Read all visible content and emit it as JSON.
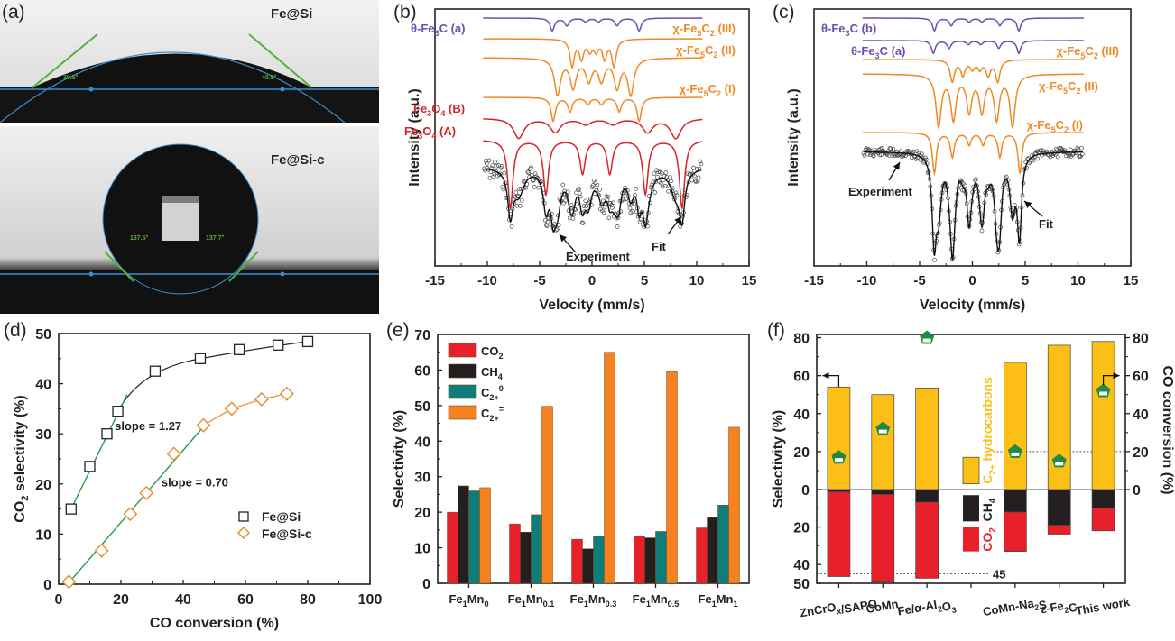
{
  "panel_labels": {
    "a": "(a)",
    "b": "(b)",
    "c": "(c)",
    "d": "(d)",
    "e": "(e)",
    "f": "(f)"
  },
  "panel_a": {
    "top_sample": "Fe@Si",
    "top_angles": [
      "39.5°",
      "40.9°"
    ],
    "bottom_sample": "Fe@Si-c",
    "bottom_angles": [
      "137.5°",
      "137.7°"
    ]
  },
  "chart_data": [
    {
      "id": "b",
      "type": "line",
      "title": "",
      "xlabel": "Velocity (mm/s)",
      "ylabel": "Intensity (a.u.)",
      "xlim": [
        -15,
        15
      ],
      "xticks": [
        "-15",
        "-10",
        "-5",
        "0",
        "5",
        "10",
        "15"
      ],
      "xtick_values": [
        -15,
        -10,
        -5,
        0,
        5,
        10,
        15
      ],
      "components": [
        {
          "name": "θ-Fe3C (a)",
          "label_html": "θ-Fe<sub>3</sub>C (a)",
          "color": "#6a4fb0",
          "dips": [
            -3.8,
            -2.4,
            -0.6,
            0.6,
            2.4,
            4.5
          ],
          "depths": [
            1,
            0.6,
            0.3,
            0.3,
            0.6,
            1
          ],
          "width": 0.25
        },
        {
          "name": "χ-Fe5C2 (III)",
          "color": "#f08a24",
          "dips": [
            -1.9,
            -1.0,
            -0.2,
            0.4,
            1.2,
            2.1
          ],
          "depths": [
            1,
            0.7,
            0.4,
            0.4,
            0.7,
            1
          ],
          "width": 0.25
        },
        {
          "name": "χ-Fe5C2 (II)",
          "color": "#f08a24",
          "dips": [
            -3.3,
            -1.8,
            -0.3,
            0.9,
            2.4,
            3.7
          ],
          "depths": [
            1,
            0.8,
            0.6,
            0.6,
            0.8,
            1
          ],
          "width": 0.35
        },
        {
          "name": "χ-Fe5C2 (I)",
          "color": "#f08a24",
          "dips": [
            -3.7,
            -2.1,
            -0.4,
            0.9,
            2.6,
            4.5
          ],
          "depths": [
            1,
            0.6,
            0.3,
            0.3,
            0.6,
            1
          ],
          "width": 0.25
        },
        {
          "name": "Fe3O4 (B)",
          "color": "#d8232a",
          "dips": [
            -7.0,
            -3.5,
            -0.6,
            2.0,
            5.3,
            8.0
          ],
          "depths": [
            1,
            0.7,
            0.3,
            0.3,
            0.7,
            1
          ],
          "width": 0.6
        },
        {
          "name": "Fe3O4 (A)",
          "color": "#d8232a",
          "dips": [
            -7.8,
            -4.4,
            -0.9,
            1.7,
            5.1,
            8.6
          ],
          "depths": [
            1,
            0.8,
            0.5,
            0.5,
            0.8,
            1
          ],
          "width": 0.3
        }
      ],
      "labels": {
        "theta_a": "θ-Fe",
        "chi": "χ-Fe",
        "fe3o4": "Fe",
        "experiment": "Experiment",
        "fit": "Fit"
      },
      "annotations": [
        "Experiment",
        "Fit"
      ]
    },
    {
      "id": "c",
      "type": "line",
      "title": "",
      "xlabel": "Velocity (mm/s)",
      "ylabel": "Intensity (a.u.)",
      "xlim": [
        -15,
        15
      ],
      "xticks": [
        "-15",
        "-10",
        "-5",
        "0",
        "5",
        "10",
        "15"
      ],
      "xtick_values": [
        -15,
        -10,
        -5,
        0,
        5,
        10,
        15
      ],
      "components": [
        {
          "name": "θ-Fe3C (b)",
          "color": "#6a4fb0",
          "dips": [
            -3.6,
            -2.0,
            -0.3,
            0.9,
            2.6,
            4.4
          ],
          "depths": [
            1,
            0.6,
            0.3,
            0.3,
            0.6,
            1
          ],
          "width": 0.22
        },
        {
          "name": "θ-Fe3C (a)",
          "color": "#6a4fb0",
          "dips": [
            -3.7,
            -2.2,
            -0.4,
            0.8,
            2.5,
            4.4
          ],
          "depths": [
            1,
            0.6,
            0.3,
            0.3,
            0.6,
            1
          ],
          "width": 0.22
        },
        {
          "name": "χ-Fe5C2 (III)",
          "color": "#f08a24",
          "dips": [
            -1.9,
            -0.9,
            0.0,
            0.7,
            1.5,
            2.4
          ],
          "depths": [
            1,
            0.7,
            0.4,
            0.4,
            0.7,
            1
          ],
          "width": 0.25
        },
        {
          "name": "χ-Fe5C2 (II)",
          "color": "#f08a24",
          "dips": [
            -3.2,
            -1.8,
            -0.3,
            0.9,
            2.3,
            3.8
          ],
          "depths": [
            1,
            0.85,
            0.7,
            0.7,
            0.85,
            1
          ],
          "width": 0.3
        },
        {
          "name": "χ-Fe5C2 (I)",
          "color": "#f08a24",
          "dips": [
            -3.6,
            -1.9,
            -0.3,
            1.0,
            2.6,
            4.5
          ],
          "depths": [
            1,
            0.6,
            0.3,
            0.3,
            0.6,
            1
          ],
          "width": 0.22
        }
      ],
      "annotations": [
        "Experiment",
        "Fit"
      ]
    },
    {
      "id": "d",
      "type": "scatter",
      "title": "",
      "xlabel": "CO conversion (%)",
      "ylabel": "CO2 selectivity (%)",
      "xlim": [
        0,
        100
      ],
      "ylim": [
        0,
        50
      ],
      "xticks": [
        "0",
        "20",
        "40",
        "60",
        "80",
        "100"
      ],
      "xtick_values": [
        0,
        20,
        40,
        60,
        80,
        100
      ],
      "yticks": [
        "0",
        "10",
        "20",
        "30",
        "40",
        "50"
      ],
      "ytick_values": [
        0,
        10,
        20,
        30,
        40,
        50
      ],
      "series": [
        {
          "name": "Fe@Si",
          "marker": "square",
          "color": "#222222",
          "x": [
            4,
            10,
            15.5,
            19,
            31,
            45.5,
            58,
            70.5,
            80
          ],
          "y": [
            15,
            23.5,
            30,
            34.5,
            42.5,
            45,
            46.8,
            47.7,
            48.4
          ]
        },
        {
          "name": "Fe@Si-c",
          "marker": "diamond",
          "color": "#e8892c",
          "x": [
            3.3,
            13.8,
            23,
            28.2,
            37,
            46.5,
            55.6,
            65.2,
            73.3
          ],
          "y": [
            0.5,
            6.7,
            14,
            18.2,
            26,
            31.7,
            35,
            36.9,
            38
          ]
        }
      ],
      "fits": [
        {
          "label": "slope = 1.27",
          "slope": 1.27,
          "x": [
            4,
            22
          ],
          "color": "#2a9a4a"
        },
        {
          "label": "slope = 0.70",
          "slope": 0.7,
          "x": [
            3.3,
            46.5
          ],
          "color": "#2a9a4a"
        }
      ],
      "legend_position": "bottom-right"
    },
    {
      "id": "e",
      "type": "bar",
      "title": "",
      "xlabel": "",
      "ylabel": "Selectivity (%)",
      "ylim": [
        0,
        70
      ],
      "yticks": [
        "0",
        "10",
        "20",
        "30",
        "40",
        "50",
        "60",
        "70"
      ],
      "ytick_values": [
        0,
        10,
        20,
        30,
        40,
        50,
        60,
        70
      ],
      "categories": [
        "Fe1Mn0",
        "Fe1Mn0.1",
        "Fe1Mn0.3",
        "Fe1Mn0.5",
        "Fe1Mn1"
      ],
      "category_parts": [
        [
          "Fe",
          "1",
          "Mn",
          "0"
        ],
        [
          "Fe",
          "1",
          "Mn",
          "0.1"
        ],
        [
          "Fe",
          "1",
          "Mn",
          "0.3"
        ],
        [
          "Fe",
          "1",
          "Mn",
          "0.5"
        ],
        [
          "Fe",
          "1",
          "Mn",
          "1"
        ]
      ],
      "series": [
        {
          "name": "CO2",
          "color": "#e8202a",
          "values": [
            20,
            16.7,
            12.4,
            13.2,
            15.6
          ]
        },
        {
          "name": "CH4",
          "color": "#231f20",
          "values": [
            27.4,
            14.4,
            9.7,
            12.8,
            18.5
          ]
        },
        {
          "name": "C2+0",
          "color": "#0f7e7a",
          "values": [
            26,
            19.3,
            13.2,
            14.6,
            22
          ]
        },
        {
          "name": "C2+=",
          "color": "#f5821f",
          "values": [
            26.9,
            49.8,
            65,
            59.5,
            43.9
          ]
        }
      ],
      "legend_parts": [
        [
          "CO",
          "2",
          ""
        ],
        [
          "CH",
          "4",
          ""
        ],
        [
          "C",
          "2+",
          "0"
        ],
        [
          "C",
          "2+",
          "="
        ]
      ],
      "legend_position": "top-left"
    },
    {
      "id": "f",
      "type": "bar",
      "title": "",
      "xlabel": "",
      "ylabel": "Selectivity (%)",
      "y2label": "CO conversion (%)",
      "ylim_top": [
        0,
        85
      ],
      "ylim_bottom": [
        0,
        50
      ],
      "yticks_top": [
        "0",
        "20",
        "40",
        "60",
        "80"
      ],
      "ytick_values_top": [
        0,
        20,
        40,
        60,
        80
      ],
      "yticks_bottom": [
        "20",
        "40",
        "50"
      ],
      "ytick_values_bottom": [
        20,
        40,
        50
      ],
      "y2ticks": [
        "0",
        "20",
        "40",
        "60",
        "80"
      ],
      "y2tick_values": [
        0,
        20,
        40,
        60,
        80
      ],
      "categories": [
        "ZnCrOx/SAPO",
        "CoMn",
        "Fe/α-Al2O3",
        "",
        "CoMn-Na2S",
        "ε-Fe2C",
        "This work"
      ],
      "category_labels": [
        "ZnCrO<sub>x</sub>/SAPO",
        "CoMn",
        "Fe/α-Al<sub>2</sub>O<sub>3</sub>",
        "",
        "CoMn-Na<sub>2</sub>S",
        "ε-Fe<sub>2</sub>C",
        "This work"
      ],
      "series": [
        {
          "name": "C2+ hydrocarbons",
          "color": "#fbbf16",
          "direction": "up",
          "values": [
            54,
            50,
            53.5,
            null,
            67,
            76,
            78
          ]
        },
        {
          "name": "CH4",
          "color": "#231f20",
          "direction": "down",
          "values": [
            1.2,
            2.6,
            6.7,
            null,
            12,
            19,
            9.8
          ]
        },
        {
          "name": "CO2",
          "color": "#e8202a",
          "direction": "down",
          "values": [
            45.2,
            46.8,
            40.6,
            null,
            21,
            4.8,
            12.2
          ]
        }
      ],
      "co_conversion": {
        "name": "CO conversion",
        "color": "#1f8a43",
        "values": [
          17,
          32,
          80,
          null,
          20,
          15,
          52
        ]
      },
      "reference_lines": [
        {
          "axis": "bottom",
          "value": 45,
          "label": "45"
        },
        {
          "axis": "right",
          "value": 20
        }
      ],
      "legend_labels": {
        "c2": "C",
        "c2_sub": "2+",
        "c2_rest": " hydrocarbons",
        "ch4": "CH",
        "ch4_sub": "4",
        "co2": "CO",
        "co2_sub": "2"
      }
    }
  ]
}
